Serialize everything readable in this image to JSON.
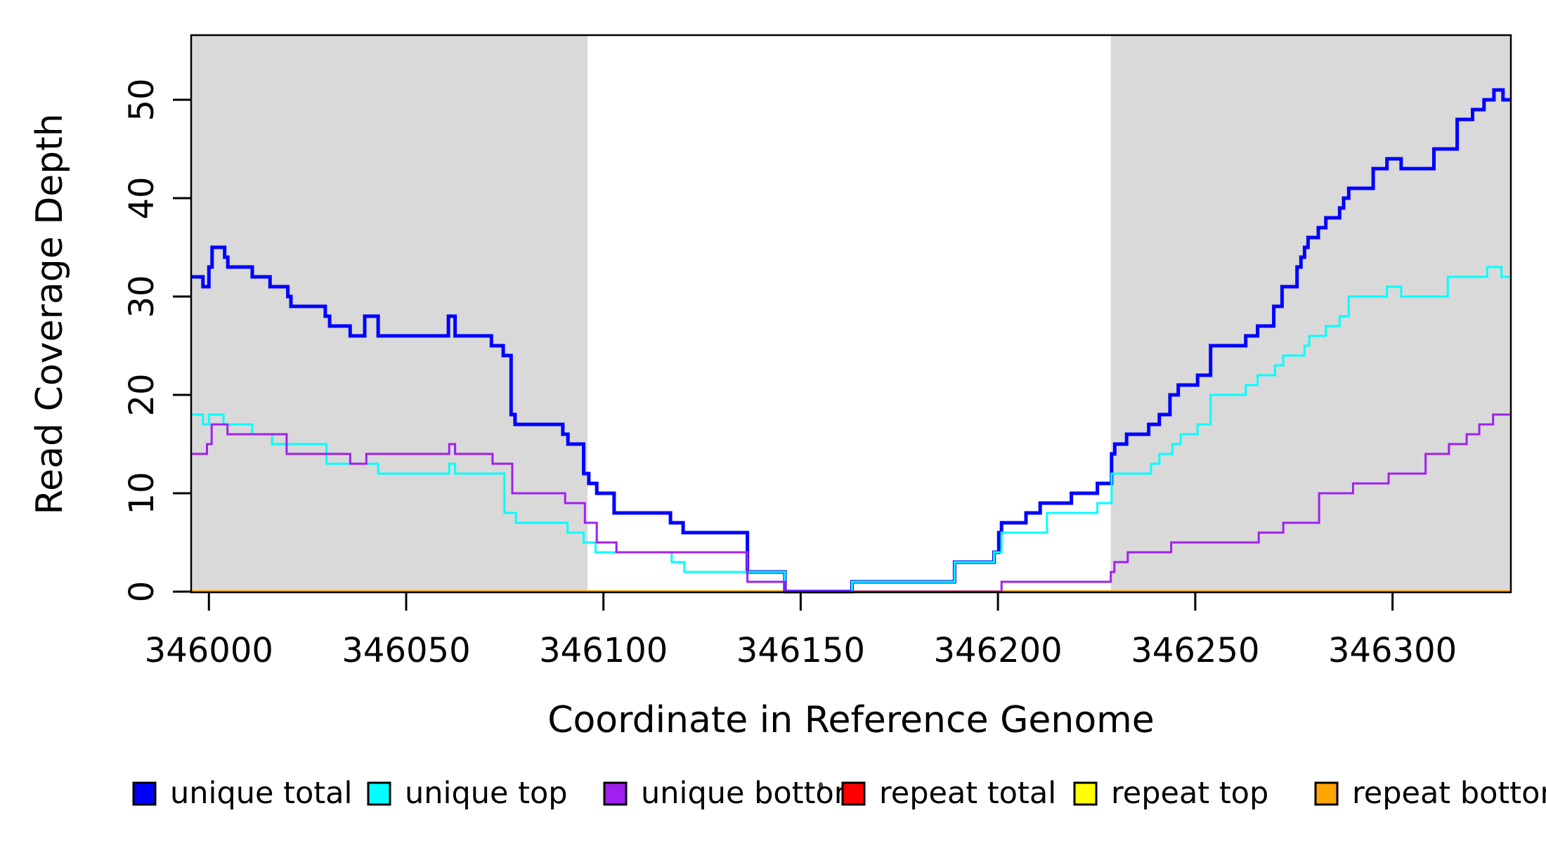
{
  "figure": {
    "background": "#FFFFFF",
    "plot_background": "#FFFFFF"
  },
  "chart_data": {
    "type": "line",
    "subtype": "step-coverage-plot",
    "title": "",
    "xlabel": "Coordinate in Reference Genome",
    "ylabel": "Read Coverage Depth",
    "xlim": [
      345995.5,
      346330
    ],
    "ylim": [
      0,
      56.6
    ],
    "x_ticks": [
      346000,
      346050,
      346100,
      346150,
      346200,
      346250,
      346300
    ],
    "x_tick_labels": [
      "346000",
      "346050",
      "346100",
      "346150",
      "346200",
      "346250",
      "346300"
    ],
    "y_ticks": [
      0,
      10,
      20,
      30,
      40,
      50
    ],
    "y_tick_labels": [
      "0",
      "10",
      "20",
      "30",
      "40",
      "50"
    ],
    "grid": false,
    "legend_position": "bottom",
    "shaded_regions": [
      {
        "x0": 345995.5,
        "x1": 346096,
        "color": "#D9D9D9"
      },
      {
        "x0": 346228.6,
        "x1": 346330,
        "color": "#D9D9D9"
      }
    ],
    "series": [
      {
        "name": "repeat total",
        "color": "#FF0000",
        "line_width": 3,
        "steps": [
          [
            345995.5,
            0
          ]
        ]
      },
      {
        "name": "repeat top",
        "color": "#FFFF00",
        "line_width": 3,
        "steps": [
          [
            345995.5,
            0
          ]
        ]
      },
      {
        "name": "repeat bottom",
        "color": "#FFA500",
        "line_width": 4,
        "steps": [
          [
            345995.5,
            0
          ]
        ]
      },
      {
        "name": "unique total",
        "color": "#0000FF",
        "line_width": 5,
        "steps": [
          [
            345995.5,
            32
          ],
          [
            345998.5,
            31
          ],
          [
            346000,
            33
          ],
          [
            346000.8,
            35
          ],
          [
            346004,
            34
          ],
          [
            346004.8,
            33
          ],
          [
            346011,
            32
          ],
          [
            346015.5,
            31
          ],
          [
            346020,
            30
          ],
          [
            346020.8,
            29
          ],
          [
            346029.5,
            28
          ],
          [
            346030.6,
            27
          ],
          [
            346035.8,
            26
          ],
          [
            346039.5,
            28
          ],
          [
            346042.9,
            26
          ],
          [
            346060.7,
            28
          ],
          [
            346062.4,
            26
          ],
          [
            346071.6,
            25
          ],
          [
            346074.6,
            24
          ],
          [
            346076.6,
            18
          ],
          [
            346077.6,
            17
          ],
          [
            346089.7,
            16
          ],
          [
            346091,
            15
          ],
          [
            346095,
            12
          ],
          [
            346096.3,
            11
          ],
          [
            346098.3,
            10
          ],
          [
            346102.7,
            8
          ],
          [
            346117,
            7
          ],
          [
            346120.2,
            6
          ],
          [
            346136.5,
            2
          ],
          [
            346146,
            0
          ],
          [
            346163,
            1
          ],
          [
            346189,
            3
          ],
          [
            346199,
            4
          ],
          [
            346200.2,
            6
          ],
          [
            346200.9,
            7
          ],
          [
            346207.1,
            8
          ],
          [
            346210.7,
            9
          ],
          [
            346218.6,
            10
          ],
          [
            346225.2,
            11
          ],
          [
            346228.8,
            14
          ],
          [
            346229.6,
            15
          ],
          [
            346232.6,
            16
          ],
          [
            346238.2,
            17
          ],
          [
            346240.9,
            18
          ],
          [
            346243.6,
            20
          ],
          [
            346245.7,
            21
          ],
          [
            346250.6,
            22
          ],
          [
            346253.9,
            25
          ],
          [
            346262.8,
            26
          ],
          [
            346265.8,
            27
          ],
          [
            346269.9,
            29
          ],
          [
            346272,
            31
          ],
          [
            346275.8,
            33
          ],
          [
            346276.8,
            34
          ],
          [
            346277.7,
            35
          ],
          [
            346278.6,
            36
          ],
          [
            346281.2,
            37
          ],
          [
            346283.1,
            38
          ],
          [
            346286.6,
            39
          ],
          [
            346287.6,
            40
          ],
          [
            346288.9,
            41
          ],
          [
            346295.1,
            43
          ],
          [
            346298.6,
            44
          ],
          [
            346302.2,
            43
          ],
          [
            346310.5,
            45
          ],
          [
            346316.4,
            48
          ],
          [
            346320.3,
            49
          ],
          [
            346323.2,
            50
          ],
          [
            346325.7,
            51
          ],
          [
            346328,
            50
          ]
        ]
      },
      {
        "name": "unique top",
        "color": "#00FFFF",
        "line_width": 3,
        "steps": [
          [
            345995.5,
            18
          ],
          [
            345998.5,
            17
          ],
          [
            346000,
            18
          ],
          [
            346003.7,
            17
          ],
          [
            346011,
            16
          ],
          [
            346016,
            15
          ],
          [
            346029.8,
            13
          ],
          [
            346042.9,
            12
          ],
          [
            346060.9,
            13
          ],
          [
            346062.4,
            12
          ],
          [
            346074.9,
            8
          ],
          [
            346077.8,
            7
          ],
          [
            346090.9,
            6
          ],
          [
            346095,
            5
          ],
          [
            346098,
            4
          ],
          [
            346117.3,
            3
          ],
          [
            346120.5,
            2
          ],
          [
            346146,
            0
          ],
          [
            346163,
            1
          ],
          [
            346189,
            3
          ],
          [
            346199,
            4
          ],
          [
            346200.9,
            6
          ],
          [
            346212.4,
            8
          ],
          [
            346225.2,
            9
          ],
          [
            346228.8,
            12
          ],
          [
            346238.8,
            13
          ],
          [
            346240.9,
            14
          ],
          [
            346244.2,
            15
          ],
          [
            346246.3,
            16
          ],
          [
            346250.6,
            17
          ],
          [
            346253.9,
            20
          ],
          [
            346262.8,
            21
          ],
          [
            346265.8,
            22
          ],
          [
            346270.2,
            23
          ],
          [
            346272.3,
            24
          ],
          [
            346277.7,
            25
          ],
          [
            346278.9,
            26
          ],
          [
            346283.1,
            27
          ],
          [
            346286.6,
            28
          ],
          [
            346288.9,
            30
          ],
          [
            346298.6,
            31
          ],
          [
            346302.2,
            30
          ],
          [
            346314,
            32
          ],
          [
            346324,
            33
          ],
          [
            346327.6,
            32
          ]
        ]
      },
      {
        "name": "unique bottom",
        "color": "#A020F0",
        "line_width": 3,
        "steps": [
          [
            345995.5,
            14
          ],
          [
            345999.5,
            15
          ],
          [
            346000.7,
            17
          ],
          [
            346004.7,
            16
          ],
          [
            346019.7,
            14
          ],
          [
            346035.8,
            13
          ],
          [
            346039.9,
            14
          ],
          [
            346060.9,
            15
          ],
          [
            346062.4,
            14
          ],
          [
            346071.9,
            13
          ],
          [
            346076.9,
            10
          ],
          [
            346090.3,
            9
          ],
          [
            346095.3,
            7
          ],
          [
            346098.3,
            5
          ],
          [
            346103.3,
            4
          ],
          [
            346136.5,
            1
          ],
          [
            346146,
            0
          ],
          [
            346200.9,
            1
          ],
          [
            346228.6,
            2
          ],
          [
            346229.5,
            3
          ],
          [
            346232.9,
            4
          ],
          [
            346243.9,
            5
          ],
          [
            346266.1,
            6
          ],
          [
            346272.3,
            7
          ],
          [
            346281.4,
            10
          ],
          [
            346290,
            11
          ],
          [
            346299,
            12
          ],
          [
            346308.4,
            14
          ],
          [
            346314.3,
            15
          ],
          [
            346318.8,
            16
          ],
          [
            346322,
            17
          ],
          [
            346325.5,
            18
          ]
        ]
      }
    ],
    "legend": [
      {
        "label": "unique total",
        "color": "#0000FF"
      },
      {
        "label": "unique top",
        "color": "#00FFFF"
      },
      {
        "label": "unique bottom",
        "color": "#A020F0"
      },
      {
        "label": "repeat total",
        "color": "#FF0000"
      },
      {
        "label": "repeat top",
        "color": "#FFFF00"
      },
      {
        "label": "repeat bottom",
        "color": "#FFA500"
      }
    ]
  }
}
